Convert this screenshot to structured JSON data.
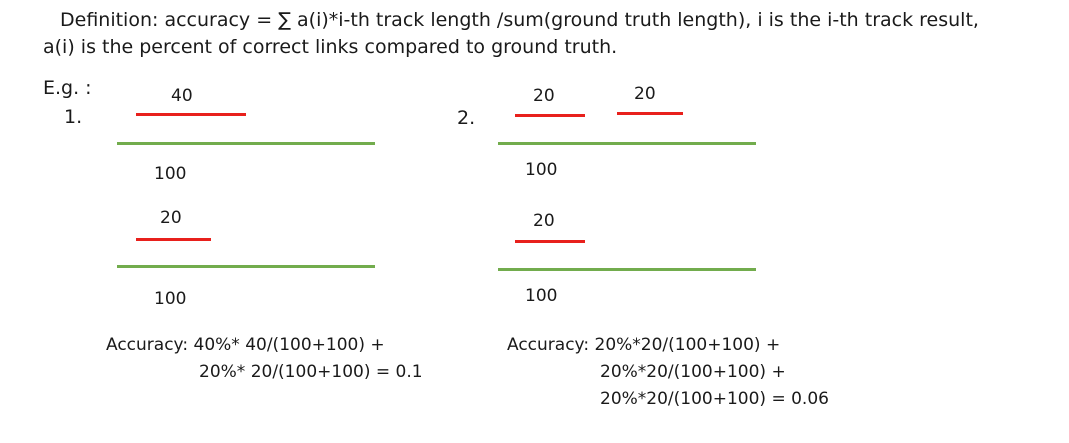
{
  "definition": {
    "line1": "Definition:  accuracy = ∑ a(i)*i-th track length /sum(ground truth length), i is the i-th track result,",
    "line2": "a(i) is the percent of correct links compared to ground truth."
  },
  "eg_label": "E.g. :",
  "example1": {
    "index": "1.",
    "track1_label": "40",
    "gt1_label": "100",
    "track2_label": "20",
    "gt2_label": "100",
    "accuracy_line1": "Accuracy: 40%* 40/(100+100) +",
    "accuracy_line2": "20%* 20/(100+100) = 0.1"
  },
  "example2": {
    "index": "2.",
    "track1a_label": "20",
    "track1b_label": "20",
    "gt1_label": "100",
    "track2_label": "20",
    "gt2_label": "100",
    "accuracy_line1": "Accuracy: 20%*20/(100+100) +",
    "accuracy_line2": "20%*20/(100+100) +",
    "accuracy_line3": "20%*20/(100+100) = 0.06"
  },
  "colors": {
    "track": "#e8201c",
    "ground_truth": "#72ac4d"
  }
}
